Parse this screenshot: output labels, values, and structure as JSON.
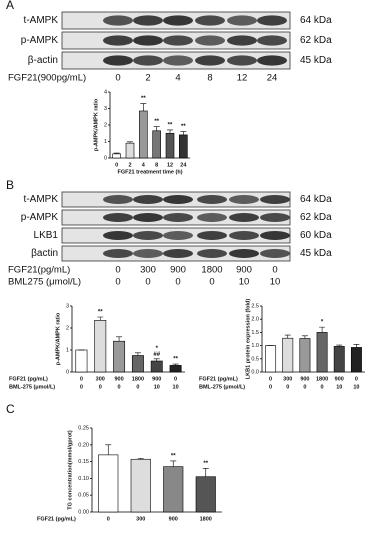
{
  "panel_a": {
    "label": "A",
    "blot_rows": [
      "t-AMPK",
      "p-AMPK",
      "β-actin"
    ],
    "kda": [
      "64 kDa",
      "62 kDa",
      "45 kDa"
    ],
    "treatments": [
      {
        "label": "FGF21(900pg/mL)",
        "values": [
          "0",
          "2",
          "4",
          "8",
          "12",
          "24"
        ]
      }
    ]
  },
  "panel_b": {
    "label": "B",
    "blot_rows": [
      "t-AMPK",
      "p-AMPK",
      "LKB1",
      "βactin"
    ],
    "kda": [
      "64 kDa",
      "62 kDa",
      "60 kDa",
      "45 kDa"
    ],
    "treatments": [
      {
        "label": "FGF21(pg/mL)",
        "values": [
          "0",
          "300",
          "900",
          "1800",
          "900",
          "0"
        ]
      },
      {
        "label": "BML275  (μmol/L)",
        "values": [
          "0",
          "0",
          "0",
          "0",
          "10",
          "10"
        ]
      }
    ]
  },
  "panel_c": {
    "label": "C"
  },
  "chart_data": [
    {
      "type": "bar",
      "ylabel": "p-AMPK/AMPK ratio",
      "xlabel": "FGF21 treatment time (h)",
      "categories": [
        "0",
        "2",
        "4",
        "8",
        "12",
        "24"
      ],
      "values": [
        0.25,
        0.9,
        2.85,
        1.65,
        1.5,
        1.4
      ],
      "errors": [
        0.05,
        0.08,
        0.45,
        0.25,
        0.2,
        0.2
      ],
      "colors": [
        "#ffffff",
        "#dddddd",
        "#999999",
        "#777777",
        "#555555",
        "#333333"
      ],
      "annotations": [
        null,
        null,
        "**",
        "**",
        "**",
        "**"
      ],
      "ylim": [
        0,
        4
      ],
      "yticks": [
        0,
        1,
        2,
        3,
        4
      ]
    },
    {
      "type": "bar",
      "ylabel": "p-AMPK/AMPK ratio",
      "categories_label": "FGF21 (pg/mL)",
      "categories": [
        "0",
        "300",
        "900",
        "1800",
        "900",
        "0"
      ],
      "categories2_label": "BML-275 (μmol/L)",
      "categories2": [
        "0",
        "0",
        "0",
        "0",
        "10",
        "10"
      ],
      "values": [
        1,
        2.35,
        1.4,
        0.75,
        0.5,
        0.3
      ],
      "errors": [
        0,
        0.15,
        0.2,
        0.12,
        0.1,
        0.06
      ],
      "colors": [
        "#ffffff",
        "#dddddd",
        "#999999",
        "#666666",
        "#444444",
        "#222222"
      ],
      "annotations": [
        null,
        "**",
        null,
        null,
        "*\n##",
        "**"
      ],
      "ylim": [
        0,
        3
      ],
      "yticks": [
        0,
        1,
        2,
        3
      ]
    },
    {
      "type": "bar",
      "ylabel": "LKB1 protein expression (fold)",
      "categories_label": "FGF21 (pg/mL)",
      "categories": [
        "0",
        "300",
        "900",
        "1800",
        "900",
        "0"
      ],
      "categories2_label": "BML-275 (μmol/L)",
      "categories2": [
        "0",
        "0",
        "0",
        "0",
        "10",
        "10"
      ],
      "values": [
        1,
        1.28,
        1.27,
        1.5,
        0.97,
        0.93
      ],
      "errors": [
        0,
        0.12,
        0.1,
        0.2,
        0.05,
        0.12
      ],
      "colors": [
        "#ffffff",
        "#dddddd",
        "#999999",
        "#666666",
        "#444444",
        "#222222"
      ],
      "annotations": [
        null,
        null,
        null,
        "*",
        null,
        null
      ],
      "ylim": [
        0,
        2.5
      ],
      "yticks": [
        {
          "value": 0,
          "label": "0.0"
        },
        {
          "value": 0.5,
          "label": "0.5"
        },
        {
          "value": 1,
          "label": "1.0"
        },
        {
          "value": 1.5,
          "label": "1.5"
        },
        {
          "value": 2,
          "label": "2.0"
        },
        {
          "value": 2.5,
          "label": "2.5"
        }
      ]
    },
    {
      "type": "bar",
      "ylabel": "TG concentration(mmol/gprot)",
      "categories_label": "FGF21 (pg/mL)",
      "categories": [
        "0",
        "300",
        "900",
        "1800"
      ],
      "values": [
        0.17,
        0.157,
        0.135,
        0.105
      ],
      "errors": [
        0.03,
        0.003,
        0.017,
        0.025
      ],
      "colors": [
        "#ffffff",
        "#dddddd",
        "#888888",
        "#555555"
      ],
      "annotations": [
        null,
        null,
        "**",
        "**"
      ],
      "ylim": [
        0,
        0.25
      ],
      "yticks": [
        {
          "value": 0,
          "label": "0.00"
        },
        {
          "value": 0.05,
          "label": "0.05"
        },
        {
          "value": 0.1,
          "label": "0.10"
        },
        {
          "value": 0.15,
          "label": "0.15"
        },
        {
          "value": 0.2,
          "label": "0.20"
        },
        {
          "value": 0.25,
          "label": "0.25"
        }
      ]
    }
  ]
}
